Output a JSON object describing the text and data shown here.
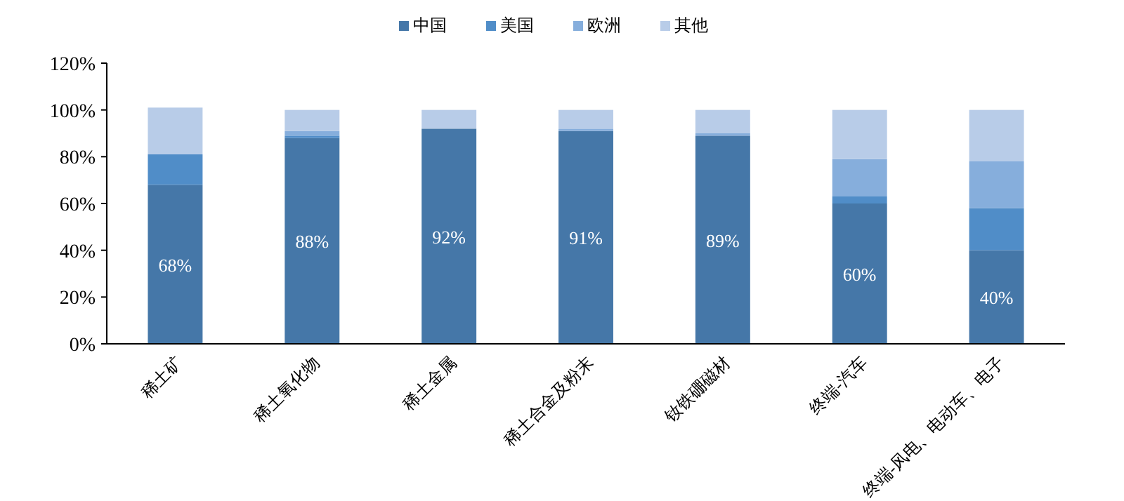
{
  "chart_data": {
    "type": "bar",
    "stacked": true,
    "legend": "top",
    "grid": false,
    "categories": [
      "稀土矿",
      "稀土氧化物",
      "稀土金属",
      "稀土合金及粉末",
      "钕铁硼磁材",
      "终端-汽车",
      "终端-风电、电动车、电子"
    ],
    "series": [
      {
        "name": "中国",
        "color": "#4577a8",
        "values": [
          68,
          88,
          92,
          91,
          89,
          60,
          40
        ],
        "value_labels": [
          "68%",
          "88%",
          "92%",
          "91%",
          "89%",
          "60%",
          "40%"
        ]
      },
      {
        "name": "美国",
        "color": "#508dc8",
        "values": [
          13,
          1,
          0,
          0,
          0,
          3,
          18
        ]
      },
      {
        "name": "欧洲",
        "color": "#86aedc",
        "values": [
          0,
          2,
          0,
          1,
          1,
          16,
          20
        ]
      },
      {
        "name": "其他",
        "color": "#b8cce8",
        "values": [
          20,
          9,
          8,
          8,
          10,
          21,
          22
        ]
      }
    ],
    "ylim": [
      0,
      120
    ],
    "yticks": [
      {
        "value": 0,
        "label": "0%"
      },
      {
        "value": 20,
        "label": "20%"
      },
      {
        "value": 40,
        "label": "40%"
      },
      {
        "value": 60,
        "label": "60%"
      },
      {
        "value": 80,
        "label": "80%"
      },
      {
        "value": 100,
        "label": "100%"
      },
      {
        "value": 120,
        "label": "120%"
      }
    ]
  }
}
